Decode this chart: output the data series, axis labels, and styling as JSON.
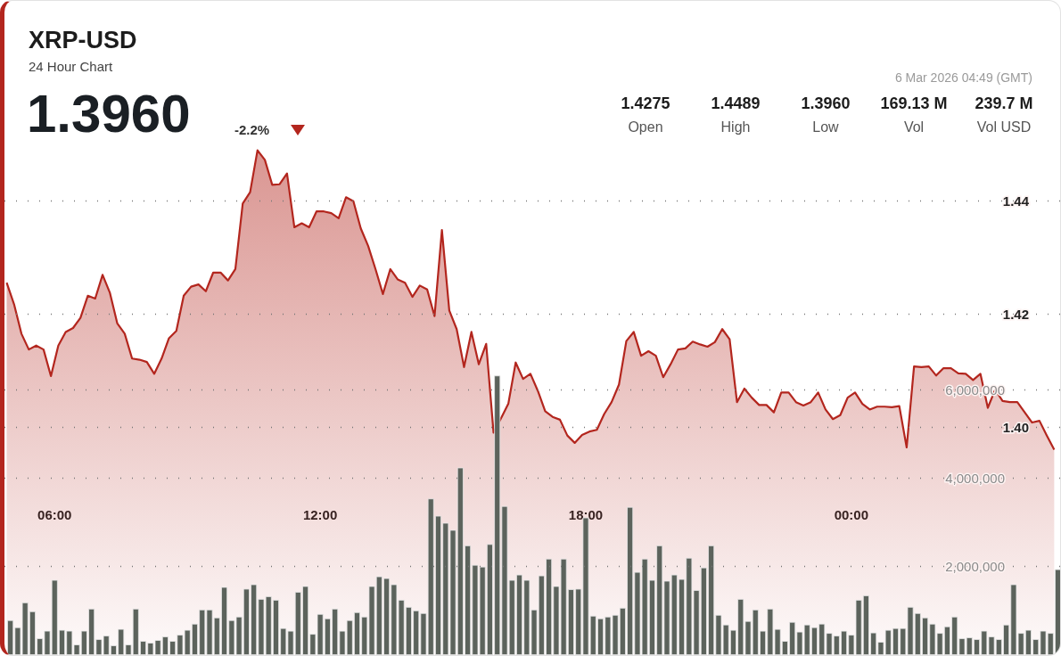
{
  "chart_data": {
    "type": "area",
    "title": "XRP-USD",
    "subtitle": "24 Hour Chart",
    "annotations": [
      "1.3960",
      "-2.2%",
      "6 Mar 2026 04:49 (GMT)",
      "1.4275",
      "Open",
      "1.4489",
      "High",
      "1.3960",
      "Low",
      "169.13 M",
      "Vol",
      "239.7 M",
      "Vol USD"
    ],
    "xlim": [
      "2026-03-05T04:52",
      "2026-03-06T04:43"
    ],
    "xticks": [
      {
        "value": "2026-03-05T06:00",
        "label": "06:00"
      },
      {
        "value": "2026-03-05T12:00",
        "label": "12:00"
      },
      {
        "value": "2026-03-05T18:00",
        "label": "18:00"
      },
      {
        "value": "2026-03-06T00:00",
        "label": "00:00"
      }
    ],
    "ylim": [
      1.3597,
      1.4753
    ],
    "yticks": [
      {
        "value": 1.4,
        "label": "1.40"
      },
      1.42,
      1.44
    ],
    "y2lim": [
      0,
      14790000
    ],
    "y2ticks": [
      {
        "value": 2000000,
        "label": "2,000,000"
      },
      {
        "value": 4000000,
        "label": "4,000,000"
      },
      {
        "value": 6000000,
        "label": "6,000,000"
      }
    ],
    "grid": "y",
    "marker": "none",
    "line_style": "solid",
    "series": [
      {
        "color": "#b3261e",
        "x": [
          "2026-03-05T04:55",
          "2026-03-05T05:05",
          "2026-03-05T05:15",
          "2026-03-05T05:25",
          "2026-03-05T05:35",
          "2026-03-05T05:45",
          "2026-03-05T05:55",
          "2026-03-05T06:05",
          "2026-03-05T06:15",
          "2026-03-05T06:25",
          "2026-03-05T06:35",
          "2026-03-05T06:45",
          "2026-03-05T06:55",
          "2026-03-05T07:05",
          "2026-03-05T07:15",
          "2026-03-05T07:25",
          "2026-03-05T07:35",
          "2026-03-05T07:45",
          "2026-03-05T07:55",
          "2026-03-05T08:05",
          "2026-03-05T08:15",
          "2026-03-05T08:25",
          "2026-03-05T08:35",
          "2026-03-05T08:45",
          "2026-03-05T08:55",
          "2026-03-05T09:05",
          "2026-03-05T09:15",
          "2026-03-05T09:25",
          "2026-03-05T09:35",
          "2026-03-05T09:45",
          "2026-03-05T09:55",
          "2026-03-05T10:05",
          "2026-03-05T10:15",
          "2026-03-05T10:25",
          "2026-03-05T10:35",
          "2026-03-05T10:45",
          "2026-03-05T10:55",
          "2026-03-05T11:05",
          "2026-03-05T11:15",
          "2026-03-05T11:25",
          "2026-03-05T11:35",
          "2026-03-05T11:45",
          "2026-03-05T11:55",
          "2026-03-05T12:05",
          "2026-03-05T12:15",
          "2026-03-05T12:25",
          "2026-03-05T12:35",
          "2026-03-05T12:45",
          "2026-03-05T12:55",
          "2026-03-05T13:05",
          "2026-03-05T13:15",
          "2026-03-05T13:25",
          "2026-03-05T13:35",
          "2026-03-05T13:45",
          "2026-03-05T13:55",
          "2026-03-05T14:05",
          "2026-03-05T14:15",
          "2026-03-05T14:25",
          "2026-03-05T14:35",
          "2026-03-05T14:45",
          "2026-03-05T14:55",
          "2026-03-05T15:05",
          "2026-03-05T15:15",
          "2026-03-05T15:25",
          "2026-03-05T15:35",
          "2026-03-05T15:45",
          "2026-03-05T15:55",
          "2026-03-05T16:05",
          "2026-03-05T16:15",
          "2026-03-05T16:25",
          "2026-03-05T16:35",
          "2026-03-05T16:45",
          "2026-03-05T16:55",
          "2026-03-05T17:05",
          "2026-03-05T17:15",
          "2026-03-05T17:25",
          "2026-03-05T17:35",
          "2026-03-05T17:45",
          "2026-03-05T17:55",
          "2026-03-05T18:05",
          "2026-03-05T18:15",
          "2026-03-05T18:25",
          "2026-03-05T18:35",
          "2026-03-05T18:45",
          "2026-03-05T18:55",
          "2026-03-05T19:05",
          "2026-03-05T19:15",
          "2026-03-05T19:25",
          "2026-03-05T19:35",
          "2026-03-05T19:45",
          "2026-03-05T19:55",
          "2026-03-05T20:05",
          "2026-03-05T20:15",
          "2026-03-05T20:25",
          "2026-03-05T20:35",
          "2026-03-05T20:45",
          "2026-03-05T20:55",
          "2026-03-05T21:05",
          "2026-03-05T21:15",
          "2026-03-05T21:25",
          "2026-03-05T21:35",
          "2026-03-05T21:45",
          "2026-03-05T21:55",
          "2026-03-05T22:05",
          "2026-03-05T22:15",
          "2026-03-05T22:25",
          "2026-03-05T22:35",
          "2026-03-05T22:45",
          "2026-03-05T22:55",
          "2026-03-05T23:05",
          "2026-03-05T23:15",
          "2026-03-05T23:25",
          "2026-03-05T23:35",
          "2026-03-05T23:45",
          "2026-03-05T23:55",
          "2026-03-06T00:05",
          "2026-03-06T00:15",
          "2026-03-06T00:25",
          "2026-03-06T00:35",
          "2026-03-06T00:45",
          "2026-03-06T00:55",
          "2026-03-06T01:05",
          "2026-03-06T01:15",
          "2026-03-06T01:25",
          "2026-03-06T01:35",
          "2026-03-06T01:45",
          "2026-03-06T01:55",
          "2026-03-06T02:05",
          "2026-03-06T02:15",
          "2026-03-06T02:25",
          "2026-03-06T02:35",
          "2026-03-06T02:45",
          "2026-03-06T02:55",
          "2026-03-06T03:05",
          "2026-03-06T03:15",
          "2026-03-06T03:25",
          "2026-03-06T03:35",
          "2026-03-06T03:45",
          "2026-03-06T03:55",
          "2026-03-06T04:05",
          "2026-03-06T04:15",
          "2026-03-06T04:25",
          "2026-03-06T04:35"
        ],
        "values": [
          1.4255,
          1.4217,
          1.4165,
          1.4137,
          1.4144,
          1.4137,
          1.409,
          1.4144,
          1.4168,
          1.4175,
          1.4193,
          1.4232,
          1.4227,
          1.4269,
          1.4237,
          1.4183,
          1.4165,
          1.4121,
          1.4119,
          1.4115,
          1.4094,
          1.4121,
          1.4157,
          1.417,
          1.4232,
          1.4248,
          1.4252,
          1.424,
          1.4273,
          1.4273,
          1.4259,
          1.4279,
          1.4395,
          1.4415,
          1.4489,
          1.4472,
          1.4428,
          1.4429,
          1.4448,
          1.4353,
          1.436,
          1.4353,
          1.4381,
          1.4381,
          1.4378,
          1.4369,
          1.4406,
          1.4399,
          1.4351,
          1.432,
          1.4279,
          1.4235,
          1.4279,
          1.4261,
          1.4255,
          1.423,
          1.425,
          1.4243,
          1.4196,
          1.4348,
          1.4206,
          1.4173,
          1.4106,
          1.4168,
          1.4111,
          1.4147,
          1.399,
          1.4015,
          1.4041,
          1.4114,
          1.4085,
          1.4094,
          1.4064,
          1.4028,
          1.4018,
          1.4013,
          1.3985,
          1.3972,
          1.3986,
          1.3992,
          1.3995,
          1.4023,
          1.4044,
          1.4075,
          1.4152,
          1.4168,
          1.4126,
          1.4134,
          1.4126,
          1.4088,
          1.4111,
          1.4137,
          1.4139,
          1.4151,
          1.4146,
          1.4142,
          1.415,
          1.4173,
          1.4155,
          1.4044,
          1.4068,
          1.4052,
          1.4039,
          1.4039,
          1.4026,
          1.4061,
          1.4061,
          1.4044,
          1.4038,
          1.4044,
          1.4061,
          1.4031,
          1.4014,
          1.4021,
          1.4052,
          1.4061,
          1.4041,
          1.4031,
          1.4036,
          1.4036,
          1.4035,
          1.4037,
          1.3964,
          1.4107,
          1.4106,
          1.4107,
          1.4091,
          1.4104,
          1.4104,
          1.4095,
          1.4094,
          1.4083,
          1.4094,
          1.4034,
          1.4066,
          1.4046,
          1.4044,
          1.4044,
          1.4026,
          1.4008,
          1.4011,
          1.3985,
          1.396
        ]
      },
      {
        "type": "bar",
        "axis": "y2",
        "color": "#5c635c",
        "x": [
          "2026-03-05T05:00",
          "2026-03-05T05:10",
          "2026-03-05T05:20",
          "2026-03-05T05:30",
          "2026-03-05T05:40",
          "2026-03-05T05:50",
          "2026-03-05T06:00",
          "2026-03-05T06:10",
          "2026-03-05T06:20",
          "2026-03-05T06:30",
          "2026-03-05T06:40",
          "2026-03-05T06:50",
          "2026-03-05T07:00",
          "2026-03-05T07:10",
          "2026-03-05T07:20",
          "2026-03-05T07:30",
          "2026-03-05T07:40",
          "2026-03-05T07:50",
          "2026-03-05T08:00",
          "2026-03-05T08:10",
          "2026-03-05T08:20",
          "2026-03-05T08:30",
          "2026-03-05T08:40",
          "2026-03-05T08:50",
          "2026-03-05T09:00",
          "2026-03-05T09:10",
          "2026-03-05T09:20",
          "2026-03-05T09:30",
          "2026-03-05T09:40",
          "2026-03-05T09:50",
          "2026-03-05T10:00",
          "2026-03-05T10:10",
          "2026-03-05T10:20",
          "2026-03-05T10:30",
          "2026-03-05T10:40",
          "2026-03-05T10:50",
          "2026-03-05T11:00",
          "2026-03-05T11:10",
          "2026-03-05T11:20",
          "2026-03-05T11:30",
          "2026-03-05T11:40",
          "2026-03-05T11:50",
          "2026-03-05T12:00",
          "2026-03-05T12:10",
          "2026-03-05T12:20",
          "2026-03-05T12:30",
          "2026-03-05T12:40",
          "2026-03-05T12:50",
          "2026-03-05T13:00",
          "2026-03-05T13:10",
          "2026-03-05T13:20",
          "2026-03-05T13:30",
          "2026-03-05T13:40",
          "2026-03-05T13:50",
          "2026-03-05T14:00",
          "2026-03-05T14:10",
          "2026-03-05T14:20",
          "2026-03-05T14:30",
          "2026-03-05T14:40",
          "2026-03-05T14:50",
          "2026-03-05T15:00",
          "2026-03-05T15:10",
          "2026-03-05T15:20",
          "2026-03-05T15:30",
          "2026-03-05T15:40",
          "2026-03-05T15:50",
          "2026-03-05T16:00",
          "2026-03-05T16:10",
          "2026-03-05T16:20",
          "2026-03-05T16:30",
          "2026-03-05T16:40",
          "2026-03-05T16:50",
          "2026-03-05T17:00",
          "2026-03-05T17:10",
          "2026-03-05T17:20",
          "2026-03-05T17:30",
          "2026-03-05T17:40",
          "2026-03-05T17:50",
          "2026-03-05T18:00",
          "2026-03-05T18:10",
          "2026-03-05T18:20",
          "2026-03-05T18:30",
          "2026-03-05T18:40",
          "2026-03-05T18:50",
          "2026-03-05T19:00",
          "2026-03-05T19:10",
          "2026-03-05T19:20",
          "2026-03-05T19:30",
          "2026-03-05T19:40",
          "2026-03-05T19:50",
          "2026-03-05T20:00",
          "2026-03-05T20:10",
          "2026-03-05T20:20",
          "2026-03-05T20:30",
          "2026-03-05T20:40",
          "2026-03-05T20:50",
          "2026-03-05T21:00",
          "2026-03-05T21:10",
          "2026-03-05T21:20",
          "2026-03-05T21:30",
          "2026-03-05T21:40",
          "2026-03-05T21:50",
          "2026-03-05T22:00",
          "2026-03-05T22:10",
          "2026-03-05T22:20",
          "2026-03-05T22:30",
          "2026-03-05T22:40",
          "2026-03-05T22:50",
          "2026-03-05T23:00",
          "2026-03-05T23:10",
          "2026-03-05T23:20",
          "2026-03-05T23:30",
          "2026-03-05T23:40",
          "2026-03-05T23:50",
          "2026-03-06T00:00",
          "2026-03-06T00:10",
          "2026-03-06T00:20",
          "2026-03-06T00:30",
          "2026-03-06T00:40",
          "2026-03-06T00:50",
          "2026-03-06T01:00",
          "2026-03-06T01:10",
          "2026-03-06T01:20",
          "2026-03-06T01:30",
          "2026-03-06T01:40",
          "2026-03-06T01:50",
          "2026-03-06T02:00",
          "2026-03-06T02:10",
          "2026-03-06T02:20",
          "2026-03-06T02:30",
          "2026-03-06T02:40",
          "2026-03-06T02:50",
          "2026-03-06T03:00",
          "2026-03-06T03:10",
          "2026-03-06T03:20",
          "2026-03-06T03:30",
          "2026-03-06T03:40",
          "2026-03-06T03:50",
          "2026-03-06T04:00",
          "2026-03-06T04:10",
          "2026-03-06T04:20",
          "2026-03-06T04:30",
          "2026-03-06T04:40"
        ],
        "values": [
          790000,
          630000,
          1190000,
          990000,
          380000,
          550000,
          1700000,
          570000,
          550000,
          240000,
          550000,
          1050000,
          360000,
          440000,
          220000,
          590000,
          240000,
          1050000,
          320000,
          280000,
          340000,
          420000,
          320000,
          460000,
          570000,
          710000,
          1030000,
          1030000,
          850000,
          1540000,
          790000,
          870000,
          1500000,
          1600000,
          1270000,
          1330000,
          1250000,
          610000,
          550000,
          1430000,
          1560000,
          480000,
          930000,
          830000,
          1050000,
          550000,
          790000,
          970000,
          870000,
          1560000,
          1780000,
          1740000,
          1600000,
          1250000,
          1090000,
          1010000,
          950000,
          3540000,
          3150000,
          2990000,
          2830000,
          4240000,
          2480000,
          2040000,
          2000000,
          2510000,
          6320000,
          3370000,
          1700000,
          1820000,
          1700000,
          1030000,
          1800000,
          2180000,
          1560000,
          2180000,
          1490000,
          1500000,
          3110000,
          890000,
          830000,
          870000,
          910000,
          1070000,
          3350000,
          1880000,
          2180000,
          1700000,
          2480000,
          1680000,
          1820000,
          1720000,
          2200000,
          1470000,
          1980000,
          2480000,
          910000,
          690000,
          570000,
          1270000,
          770000,
          1030000,
          550000,
          1050000,
          590000,
          320000,
          750000,
          530000,
          690000,
          630000,
          710000,
          500000,
          440000,
          550000,
          460000,
          1250000,
          1350000,
          510000,
          300000,
          570000,
          610000,
          610000,
          1090000,
          950000,
          850000,
          710000,
          500000,
          650000,
          870000,
          380000,
          400000,
          360000,
          550000,
          420000,
          360000,
          690000,
          1600000,
          500000,
          570000,
          360000,
          550000,
          500000,
          1940000
        ]
      }
    ]
  }
}
